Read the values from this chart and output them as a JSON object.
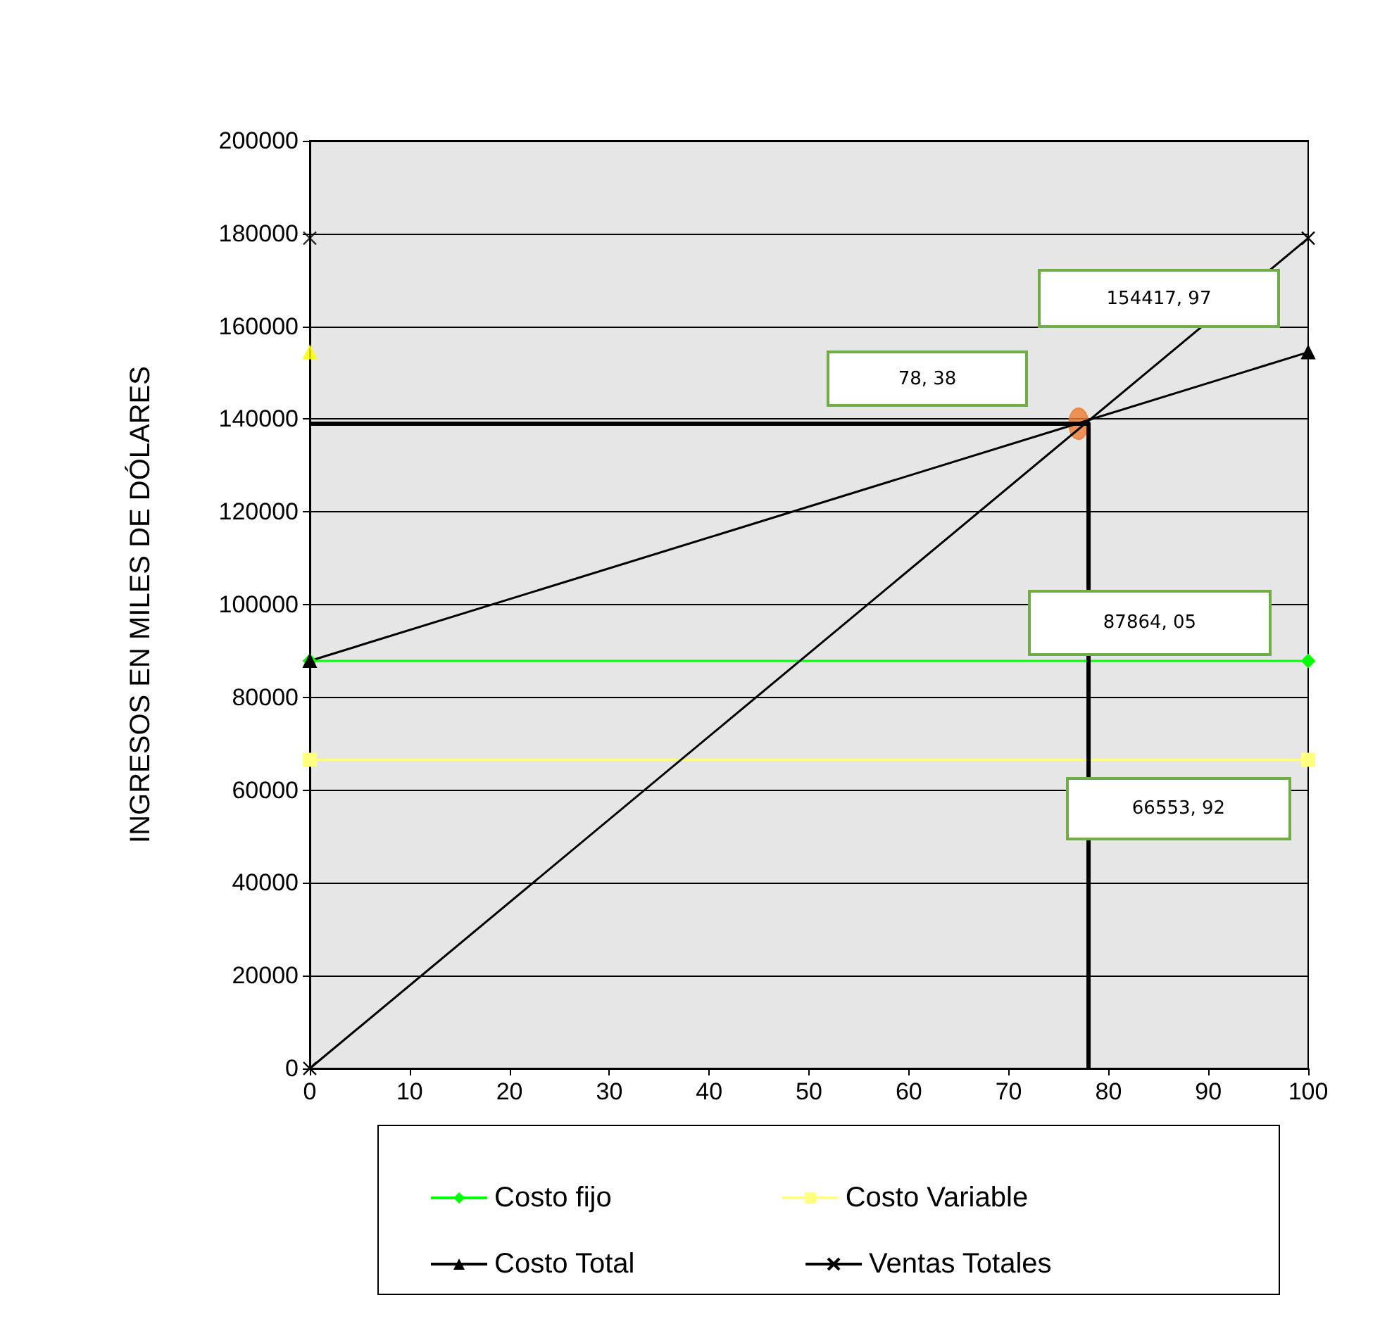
{
  "chart_data": {
    "type": "line",
    "ylabel": "INGRESOS EN MILES DE DÓLARES",
    "xlim": [
      0,
      100
    ],
    "xticks": [
      0,
      10,
      20,
      30,
      40,
      50,
      60,
      70,
      80,
      90,
      100
    ],
    "ylim": [
      0,
      200000
    ],
    "yticks": [
      0,
      20000,
      40000,
      60000,
      80000,
      100000,
      120000,
      140000,
      160000,
      180000,
      200000
    ],
    "grid": "y",
    "legend": "bottom",
    "series": [
      {
        "name": "Costo fijo",
        "color": "#00ff00",
        "marker": "diamond",
        "x": [
          0,
          100
        ],
        "values": [
          87864.05,
          87864.05
        ]
      },
      {
        "name": "Costo Variable",
        "color": "#ffff80",
        "marker": "square",
        "x": [
          0,
          100
        ],
        "values": [
          66553.92,
          66553.92
        ]
      },
      {
        "name": "Costo Total",
        "color": "#000000",
        "marker": "triangle",
        "x": [
          0,
          100
        ],
        "values": [
          87864.05,
          154417.97
        ]
      },
      {
        "name": "Ventas Totales",
        "color": "#000000",
        "marker": "cross",
        "x": [
          0,
          100
        ],
        "values": [
          0,
          179000
        ]
      },
      {
        "type": "scatter",
        "color": "#ffff00",
        "marker": "triangle",
        "x": [
          0
        ],
        "values": [
          154417.97
        ]
      },
      {
        "type": "scatter",
        "color": "#000000",
        "marker": "cross",
        "x": [
          0
        ],
        "values": [
          179000
        ]
      },
      {
        "color": "#000000",
        "marker": "none",
        "x": [
          0,
          78,
          78
        ],
        "values": [
          139000,
          139000,
          0
        ]
      },
      {
        "type": "scatter",
        "color": "#ed7d31",
        "marker": "circle",
        "x": [
          77
        ],
        "values": [
          139000
        ]
      }
    ],
    "annotations": [
      "154417, 97",
      "78, 38",
      "87864, 05",
      "66553, 92"
    ]
  }
}
